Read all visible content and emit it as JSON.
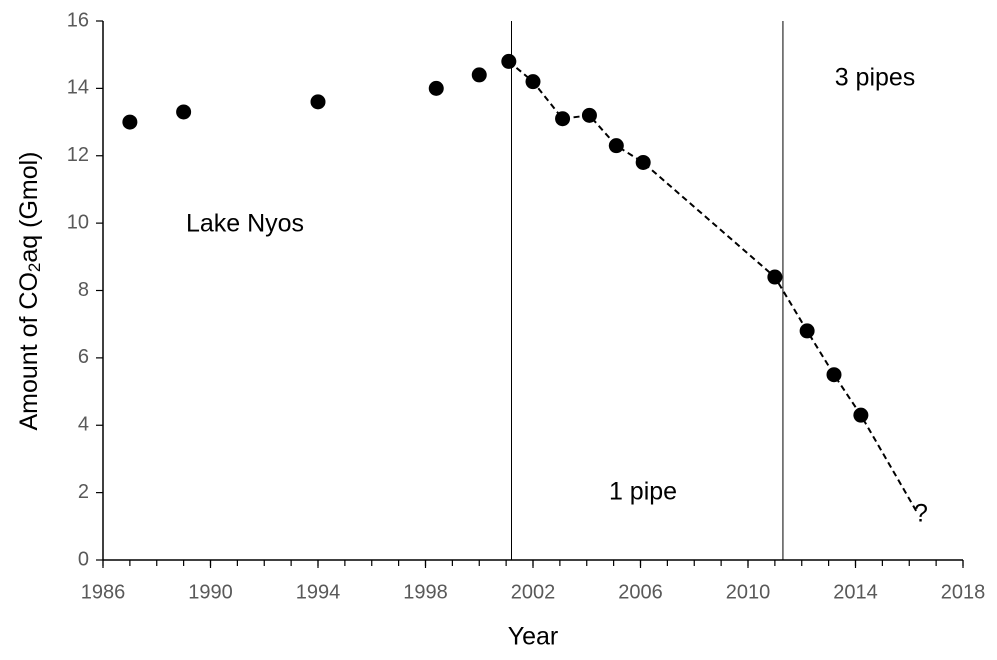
{
  "chart_data": {
    "type": "scatter",
    "xlabel": "Year",
    "ylabel_parts": [
      "Amount of CO",
      "2",
      "aq (Gmol)"
    ],
    "xlim": [
      1986,
      2018
    ],
    "ylim": [
      0,
      16
    ],
    "xticks": [
      1986,
      1990,
      1994,
      1998,
      2002,
      2006,
      2010,
      2014,
      2018
    ],
    "yticks": [
      0,
      2,
      4,
      6,
      8,
      10,
      12,
      14,
      16
    ],
    "vlines": [
      2001.2,
      2011.3
    ],
    "annotations": [
      "Lake Nyos",
      "1 pipe",
      "3 pipes",
      "?"
    ],
    "series": [
      {
        "color": "#000000",
        "marker": "circle",
        "x": [
          1987.0,
          1989.0,
          1994.0,
          1998.4,
          2000.0,
          2001.1,
          2002.0,
          2003.1,
          2004.1,
          2005.1,
          2006.1,
          2011.0,
          2012.2,
          2013.2,
          2014.2
        ],
        "values": [
          13.0,
          13.3,
          13.6,
          14.0,
          14.4,
          14.8,
          14.2,
          13.1,
          13.2,
          12.3,
          11.8,
          8.4,
          6.8,
          5.5,
          4.3
        ]
      },
      {
        "color": "#000000",
        "line": "dashed",
        "x": [
          2001.1,
          2002.0,
          2003.1,
          2004.1,
          2005.1,
          2006.1,
          2011.0,
          2012.2,
          2013.2,
          2014.2,
          2016.3
        ],
        "values": [
          14.8,
          14.2,
          13.1,
          13.2,
          12.3,
          11.8,
          8.4,
          6.8,
          5.5,
          4.3,
          1.4
        ]
      }
    ]
  }
}
